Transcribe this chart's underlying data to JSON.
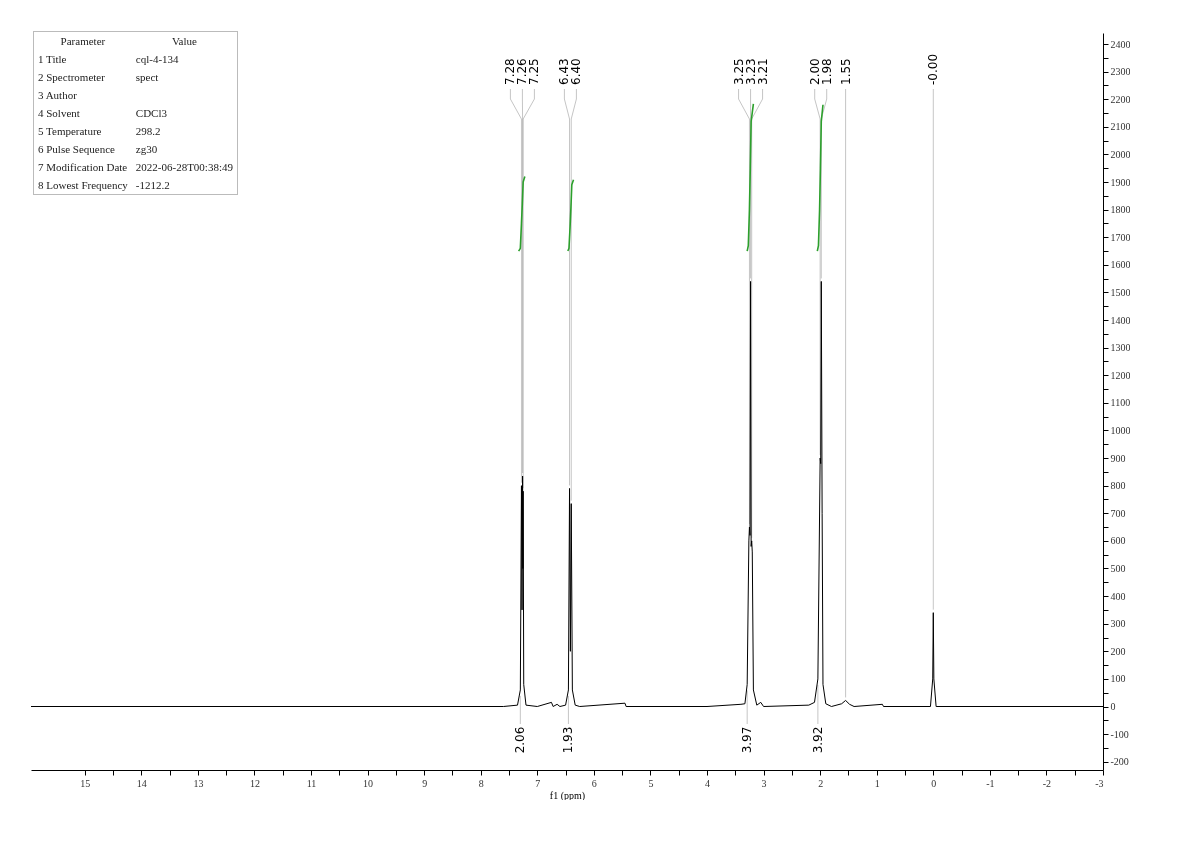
{
  "chart_data": {
    "type": "line",
    "xlabel": "f1 (ppm)",
    "marker": "none",
    "grid": false,
    "xlim": [
      15.95,
      -3
    ],
    "ylim": [
      -230,
      2440
    ],
    "xticks": [
      15,
      {
        "value": 14.5,
        "label": null
      },
      14,
      {
        "value": 13.5,
        "label": null
      },
      13,
      {
        "value": 12.5,
        "label": null
      },
      12,
      {
        "value": 11.5,
        "label": null
      },
      11,
      {
        "value": 10.5,
        "label": null
      },
      10,
      {
        "value": 9.5,
        "label": null
      },
      9,
      {
        "value": 8.5,
        "label": null
      },
      8,
      {
        "value": 7.5,
        "label": null
      },
      7,
      {
        "value": 6.5,
        "label": null
      },
      6,
      {
        "value": 5.5,
        "label": null
      },
      5,
      {
        "value": 4.5,
        "label": null
      },
      4,
      {
        "value": 3.5,
        "label": null
      },
      3,
      {
        "value": 2.5,
        "label": null
      },
      2,
      {
        "value": 1.5,
        "label": null
      },
      1,
      {
        "value": 0.5,
        "label": null
      },
      0,
      {
        "value": -0.5,
        "label": null
      },
      -1,
      {
        "value": -1.5,
        "label": null
      },
      -2,
      {
        "value": -2.5,
        "label": null
      },
      -3
    ],
    "yticks": [
      -200,
      {
        "value": -150,
        "label": null
      },
      -100,
      {
        "value": -50,
        "label": null
      },
      0,
      {
        "value": 50,
        "label": null
      },
      100,
      {
        "value": 150,
        "label": null
      },
      200,
      {
        "value": 250,
        "label": null
      },
      300,
      {
        "value": 350,
        "label": null
      },
      400,
      {
        "value": 450,
        "label": null
      },
      500,
      {
        "value": 550,
        "label": null
      },
      600,
      {
        "value": 650,
        "label": null
      },
      700,
      {
        "value": 750,
        "label": null
      },
      800,
      {
        "value": 850,
        "label": null
      },
      900,
      {
        "value": 950,
        "label": null
      },
      1000,
      {
        "value": 1050,
        "label": null
      },
      1100,
      {
        "value": 1150,
        "label": null
      },
      1200,
      {
        "value": 1250,
        "label": null
      },
      1300,
      {
        "value": 1350,
        "label": null
      },
      1400,
      {
        "value": 1450,
        "label": null
      },
      1500,
      {
        "value": 1550,
        "label": null
      },
      1600,
      {
        "value": 1650,
        "label": null
      },
      1700,
      {
        "value": 1750,
        "label": null
      },
      1800,
      {
        "value": 1850,
        "label": null
      },
      1900,
      {
        "value": 1950,
        "label": null
      },
      2000,
      {
        "value": 2050,
        "label": null
      },
      2100,
      {
        "value": 2150,
        "label": null
      },
      2200,
      {
        "value": 2250,
        "label": null
      },
      2300,
      {
        "value": 2350,
        "label": null
      },
      2400
    ],
    "series": [
      {
        "color": "#000000",
        "x": [
          15.95,
          7.6,
          7.35,
          7.3,
          7.28,
          7.27,
          7.26,
          7.255,
          7.25,
          7.24,
          7.2,
          7.0,
          6.75,
          6.72,
          6.65,
          6.6,
          6.5,
          6.45,
          6.43,
          6.415,
          6.4,
          6.38,
          6.33,
          6.25,
          5.45,
          5.43,
          4.0,
          3.4,
          3.33,
          3.29,
          3.26,
          3.25,
          3.24,
          3.23,
          3.22,
          3.21,
          3.2,
          3.18,
          3.12,
          3.05,
          3.0,
          2.2,
          2.1,
          2.04,
          2.0,
          1.99,
          1.98,
          1.965,
          1.95,
          1.9,
          1.8,
          1.62,
          1.55,
          1.48,
          1.4,
          0.9,
          0.88,
          0.05,
          0.01,
          0.0,
          -0.01,
          -0.05,
          -3
        ],
        "values": [
          0,
          0,
          5,
          60,
          800,
          350,
          835,
          500,
          780,
          80,
          5,
          0,
          15,
          0,
          8,
          0,
          5,
          60,
          790,
          200,
          735,
          60,
          5,
          0,
          12,
          0,
          0,
          8,
          10,
          80,
          600,
          650,
          620,
          1540,
          580,
          600,
          560,
          60,
          5,
          15,
          0,
          5,
          15,
          100,
          900,
          880,
          1540,
          700,
          80,
          10,
          0,
          10,
          22,
          8,
          0,
          8,
          0,
          0,
          100,
          340,
          100,
          0,
          0
        ]
      },
      {
        "color": "#2ca02c",
        "x": [
          7.33,
          7.3,
          7.28,
          7.265,
          7.25,
          7.22
        ],
        "values": [
          1650,
          1660,
          1750,
          1820,
          1900,
          1920
        ]
      },
      {
        "color": "#2ca02c",
        "x": [
          6.46,
          6.44,
          6.42,
          6.405,
          6.39,
          6.36
        ],
        "values": [
          1650,
          1660,
          1740,
          1810,
          1890,
          1908
        ]
      },
      {
        "color": "#2ca02c",
        "x": [
          3.29,
          3.27,
          3.25,
          3.235,
          3.22,
          3.18
        ],
        "values": [
          1650,
          1670,
          1800,
          1950,
          2120,
          2183
        ]
      },
      {
        "color": "#2ca02c",
        "x": [
          2.05,
          2.03,
          2.01,
          1.995,
          1.98,
          1.95
        ],
        "values": [
          1650,
          1670,
          1800,
          1950,
          2120,
          2180
        ]
      }
    ],
    "annotations": [
      "Parameter\tValue",
      "1 Title\tcql-4-134",
      "2 Spectrometer\tspect",
      "3 Author",
      "4 Solvent\tCDCl3",
      "5 Temperature\t298.2",
      "6 Pulse Sequence\tzg30",
      "7 Modification Date\t2022-06-28T00:38:49",
      "8 Lowest Frequency\t-1212.2",
      {
        "text": "7.28",
        "x": 7.28,
        "y": 800
      },
      {
        "text": "7.26",
        "x": 7.26,
        "y": 835
      },
      {
        "text": "7.25",
        "x": 7.25,
        "y": 780
      },
      {
        "text": "6.43",
        "x": 6.43,
        "y": 790
      },
      {
        "text": "6.40",
        "x": 6.4,
        "y": 735
      },
      {
        "text": "3.25",
        "x": 3.25,
        "y": 650
      },
      {
        "text": "3.23",
        "x": 3.23,
        "y": 1540
      },
      {
        "text": "3.21",
        "x": 3.21,
        "y": 600
      },
      {
        "text": "2.00",
        "x": 2.0,
        "y": 900
      },
      {
        "text": "1.98",
        "x": 1.98,
        "y": 1540
      },
      {
        "text": "1.55",
        "x": 1.55,
        "y": 22
      },
      {
        "text": "-0.00",
        "x": 0.0,
        "y": 340
      },
      {
        "text": "2.06",
        "x": 7.3,
        "y": 60
      },
      {
        "text": "1.93",
        "x": 6.45,
        "y": 60
      },
      {
        "text": "3.97",
        "x": 3.29,
        "y": 80
      },
      {
        "text": "3.92",
        "x": 2.04,
        "y": 100
      }
    ]
  }
}
